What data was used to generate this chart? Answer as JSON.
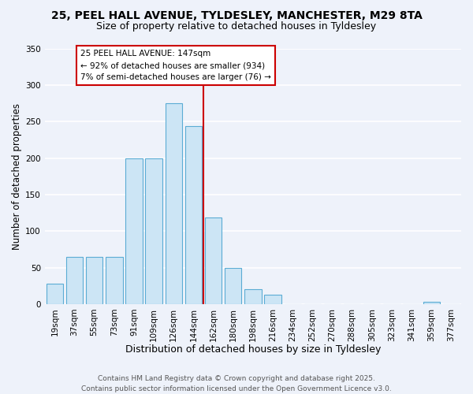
{
  "title_line1": "25, PEEL HALL AVENUE, TYLDESLEY, MANCHESTER, M29 8TA",
  "title_line2": "Size of property relative to detached houses in Tyldesley",
  "xlabel": "Distribution of detached houses by size in Tyldesley",
  "ylabel": "Number of detached properties",
  "bar_labels": [
    "19sqm",
    "37sqm",
    "55sqm",
    "73sqm",
    "91sqm",
    "109sqm",
    "126sqm",
    "144sqm",
    "162sqm",
    "180sqm",
    "198sqm",
    "216sqm",
    "234sqm",
    "252sqm",
    "270sqm",
    "288sqm",
    "305sqm",
    "323sqm",
    "341sqm",
    "359sqm",
    "377sqm"
  ],
  "bar_heights": [
    28,
    65,
    65,
    65,
    200,
    200,
    275,
    244,
    119,
    50,
    20,
    13,
    0,
    0,
    0,
    0,
    0,
    0,
    0,
    3,
    0
  ],
  "bar_color": "#cce5f5",
  "bar_edge_color": "#5bacd4",
  "vline_index": 7,
  "vline_color": "#cc0000",
  "annotation_text": "25 PEEL HALL AVENUE: 147sqm\n← 92% of detached houses are smaller (934)\n7% of semi-detached houses are larger (76) →",
  "annotation_box_color": "#cc0000",
  "annotation_fill": "#ffffff",
  "ylim": [
    0,
    350
  ],
  "yticks": [
    0,
    50,
    100,
    150,
    200,
    250,
    300,
    350
  ],
  "footer": "Contains HM Land Registry data © Crown copyright and database right 2025.\nContains public sector information licensed under the Open Government Licence v3.0.",
  "bg_color": "#eef2fa",
  "grid_color": "#ffffff",
  "title_fontsize": 10,
  "subtitle_fontsize": 9,
  "tick_fontsize": 7.5,
  "ylabel_fontsize": 8.5,
  "xlabel_fontsize": 9,
  "footer_fontsize": 6.5,
  "annot_fontsize": 7.5
}
